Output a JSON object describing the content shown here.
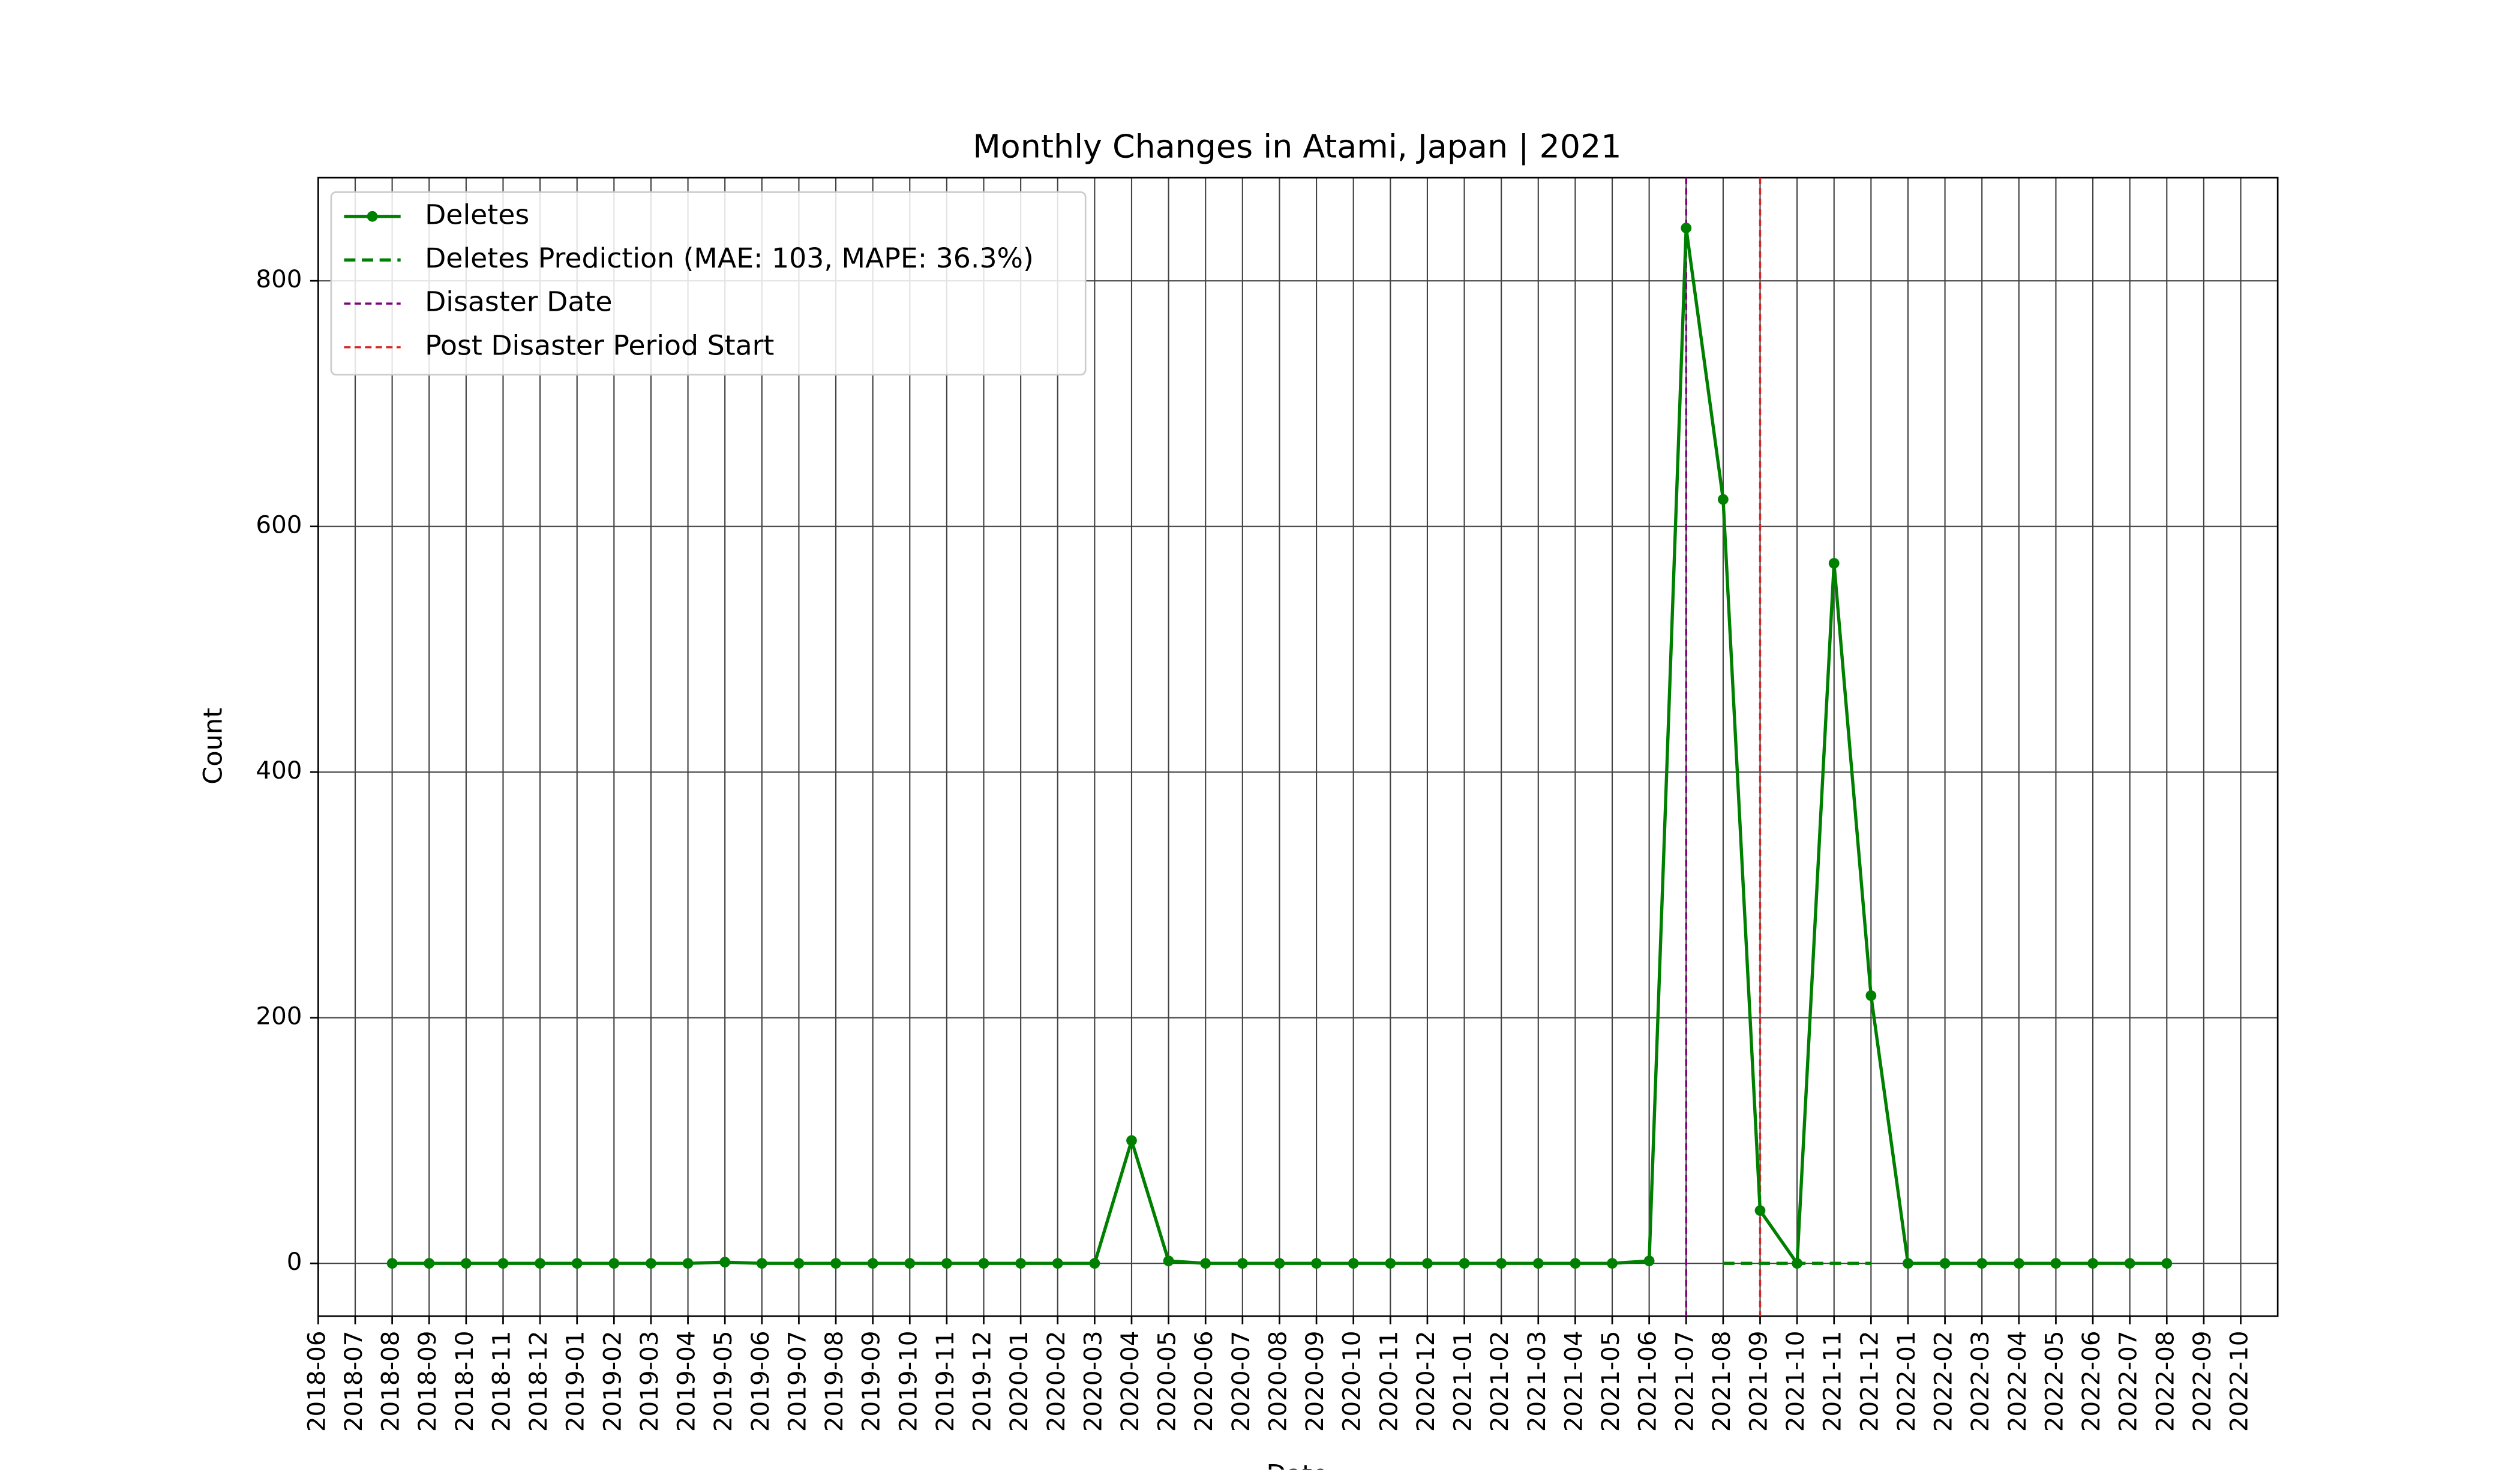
{
  "chart_data": {
    "type": "line",
    "title": "Monthly Changes in Atami, Japan | 2021",
    "xlabel": "Date",
    "ylabel": "Count",
    "x": [
      "2018-08",
      "2018-09",
      "2018-10",
      "2018-11",
      "2018-12",
      "2019-01",
      "2019-02",
      "2019-03",
      "2019-04",
      "2019-05",
      "2019-06",
      "2019-07",
      "2019-08",
      "2019-09",
      "2019-10",
      "2019-11",
      "2019-12",
      "2020-01",
      "2020-02",
      "2020-03",
      "2020-04",
      "2020-05",
      "2020-06",
      "2020-07",
      "2020-08",
      "2020-09",
      "2020-10",
      "2020-11",
      "2020-12",
      "2021-01",
      "2021-02",
      "2021-03",
      "2021-04",
      "2021-05",
      "2021-06",
      "2021-07",
      "2021-08",
      "2021-09",
      "2021-10",
      "2021-11",
      "2021-12",
      "2022-01",
      "2022-02",
      "2022-03",
      "2022-04",
      "2022-05",
      "2022-06",
      "2022-07",
      "2022-08"
    ],
    "series": [
      {
        "name": "Deletes",
        "color": "#008000",
        "style": "solid",
        "markers": true,
        "values": [
          0,
          0,
          0,
          0,
          0,
          0,
          0,
          0,
          0,
          1,
          0,
          0,
          0,
          0,
          0,
          0,
          0,
          0,
          0,
          0,
          100,
          2,
          0,
          0,
          0,
          0,
          0,
          0,
          0,
          0,
          0,
          0,
          0,
          0,
          2,
          843,
          622,
          43,
          0,
          570,
          218,
          0,
          0,
          0,
          0,
          0,
          0,
          0,
          0
        ]
      },
      {
        "name": "Deletes Prediction (MAE: 103, MAPE: 36.3%)",
        "color": "#008000",
        "style": "dashed",
        "markers": false,
        "values": [
          null,
          null,
          null,
          null,
          null,
          null,
          null,
          null,
          null,
          null,
          null,
          null,
          null,
          null,
          null,
          null,
          null,
          null,
          null,
          null,
          null,
          null,
          null,
          null,
          null,
          null,
          null,
          null,
          null,
          null,
          null,
          null,
          null,
          null,
          null,
          null,
          0,
          0,
          0,
          0,
          0,
          null,
          null,
          null,
          null,
          null,
          null,
          null,
          null
        ]
      }
    ],
    "vlines": [
      {
        "name": "Disaster Date",
        "color": "#800080",
        "x": "2021-07"
      },
      {
        "name": "Post Disaster Period Start",
        "color": "#d62728",
        "x": "2021-09"
      }
    ],
    "xlim": [
      "2018-06",
      "2022-11"
    ],
    "xticks": [
      "2018-06",
      "2018-07",
      "2018-08",
      "2018-09",
      "2018-10",
      "2018-11",
      "2018-12",
      "2019-01",
      "2019-02",
      "2019-03",
      "2019-04",
      "2019-05",
      "2019-06",
      "2019-07",
      "2019-08",
      "2019-09",
      "2019-10",
      "2019-11",
      "2019-12",
      "2020-01",
      "2020-02",
      "2020-03",
      "2020-04",
      "2020-05",
      "2020-06",
      "2020-07",
      "2020-08",
      "2020-09",
      "2020-10",
      "2020-11",
      "2020-12",
      "2021-01",
      "2021-02",
      "2021-03",
      "2021-04",
      "2021-05",
      "2021-06",
      "2021-07",
      "2021-08",
      "2021-09",
      "2021-10",
      "2021-11",
      "2021-12",
      "2022-01",
      "2022-02",
      "2022-03",
      "2022-04",
      "2022-05",
      "2022-06",
      "2022-07",
      "2022-08",
      "2022-09",
      "2022-10"
    ],
    "ylim": [
      -43,
      884
    ],
    "yticks": [
      0,
      200,
      400,
      600,
      800
    ],
    "grid": true,
    "legend": "upper left"
  }
}
